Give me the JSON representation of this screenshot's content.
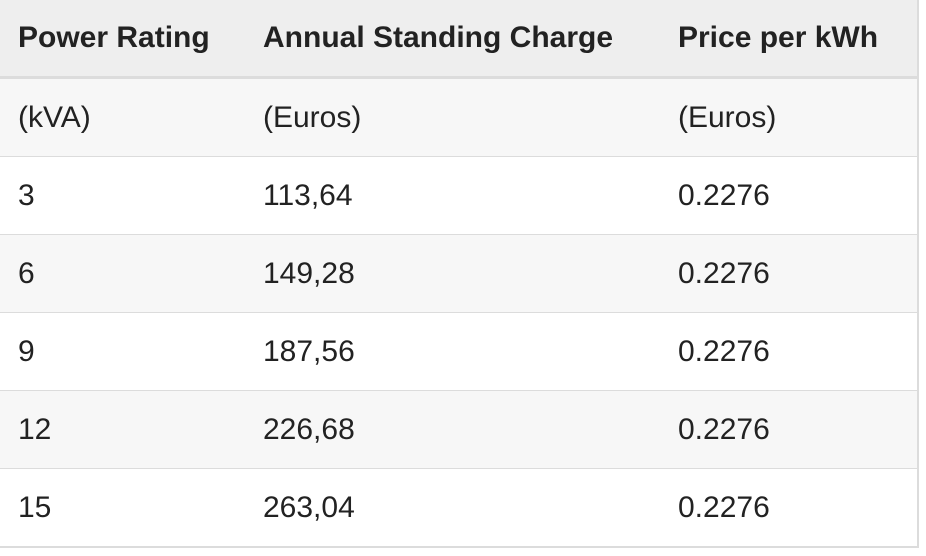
{
  "table": {
    "header": [
      "Power Rating",
      "Annual Standing Charge",
      "Price per kWh"
    ],
    "rows": [
      [
        "(kVA)",
        "(Euros)",
        "(Euros)"
      ],
      [
        "3",
        "113,64",
        "0.2276"
      ],
      [
        "6",
        "149,28",
        "0.2276"
      ],
      [
        "9",
        "187,56",
        "0.2276"
      ],
      [
        "12",
        "226,68",
        "0.2276"
      ],
      [
        "15",
        "263,04",
        "0.2276"
      ]
    ]
  }
}
